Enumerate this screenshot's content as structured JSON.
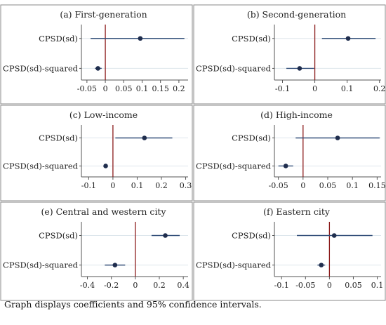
{
  "figure": {
    "caption": "Graph displays coefficients and 95% confidence intervals.",
    "colors": {
      "marker": "#1f2d4d",
      "ci_line": "#34507a",
      "zero_line": "#8b1a1a",
      "gridline": "#dde6ec",
      "frame": "#888888"
    }
  },
  "chart_data": [
    {
      "type": "scatter",
      "title": "(a) First-generation",
      "categories": [
        "CPSD(sd)",
        "CPSD(sd)-squared"
      ],
      "values": [
        0.095,
        -0.02
      ],
      "ci_low": [
        -0.04,
        -0.028
      ],
      "ci_high": [
        0.215,
        -0.01
      ],
      "xlim": [
        -0.065,
        0.225
      ],
      "xticks": [
        -0.05,
        0,
        0.05,
        0.1,
        0.15,
        0.2
      ],
      "xticklabels": [
        "-0.05",
        "0",
        "0.05",
        "0.1",
        "0.15",
        "0.2"
      ],
      "reference_line": 0
    },
    {
      "type": "scatter",
      "title": "(b) Second-generation",
      "categories": [
        "CPSD(sd)",
        "CPSD(sd)-squared"
      ],
      "values": [
        0.103,
        -0.047
      ],
      "ci_low": [
        0.022,
        -0.088
      ],
      "ci_high": [
        0.188,
        -0.002
      ],
      "xlim": [
        -0.125,
        0.205
      ],
      "xticks": [
        -0.1,
        0,
        0.1,
        0.2
      ],
      "xticklabels": [
        "-0.1",
        "0",
        "0.1",
        "0.2"
      ],
      "reference_line": 0
    },
    {
      "type": "scatter",
      "title": "(c) Low-income",
      "categories": [
        "CPSD(sd)",
        "CPSD(sd)-squared"
      ],
      "values": [
        0.13,
        -0.03
      ],
      "ci_low": [
        0.01,
        -0.038
      ],
      "ci_high": [
        0.245,
        -0.022
      ],
      "xlim": [
        -0.13,
        0.31
      ],
      "xticks": [
        -0.1,
        0,
        0.1,
        0.2,
        0.3
      ],
      "xticklabels": [
        "-0.1",
        "0",
        "0.1",
        "0.2",
        "0.3"
      ],
      "reference_line": 0
    },
    {
      "type": "scatter",
      "title": "(d) High-income",
      "categories": [
        "CPSD(sd)",
        "CPSD(sd)-squared"
      ],
      "values": [
        0.07,
        -0.035
      ],
      "ci_low": [
        -0.015,
        -0.05
      ],
      "ci_high": [
        0.155,
        -0.02
      ],
      "xlim": [
        -0.058,
        0.158
      ],
      "xticks": [
        -0.05,
        0,
        0.05,
        0.1,
        0.15
      ],
      "xticklabels": [
        "-0.05",
        "0",
        "0.05",
        "0.1",
        "0.15"
      ],
      "reference_line": 0
    },
    {
      "type": "scatter",
      "title": "(e) Central and western city",
      "categories": [
        "CPSD(sd)",
        "CPSD(sd)-squared"
      ],
      "values": [
        0.25,
        -0.17
      ],
      "ci_low": [
        0.135,
        -0.255
      ],
      "ci_high": [
        0.37,
        -0.085
      ],
      "xlim": [
        -0.45,
        0.44
      ],
      "xticks": [
        -0.4,
        -0.2,
        0,
        0.2,
        0.4
      ],
      "xticklabels": [
        "-0.4",
        "-0.2",
        "0",
        "0.2",
        "0.4"
      ],
      "reference_line": 0
    },
    {
      "type": "scatter",
      "title": "(f) Eastern city",
      "categories": [
        "CPSD(sd)",
        "CPSD(sd)-squared"
      ],
      "values": [
        0.01,
        -0.017
      ],
      "ci_low": [
        -0.068,
        -0.025
      ],
      "ci_high": [
        0.09,
        -0.009
      ],
      "xlim": [
        -0.115,
        0.108
      ],
      "xticks": [
        -0.1,
        -0.05,
        0,
        0.05,
        0.1
      ],
      "xticklabels": [
        "-0.1",
        "-0.05",
        "0",
        "0.05",
        "0.1"
      ],
      "reference_line": 0
    }
  ]
}
